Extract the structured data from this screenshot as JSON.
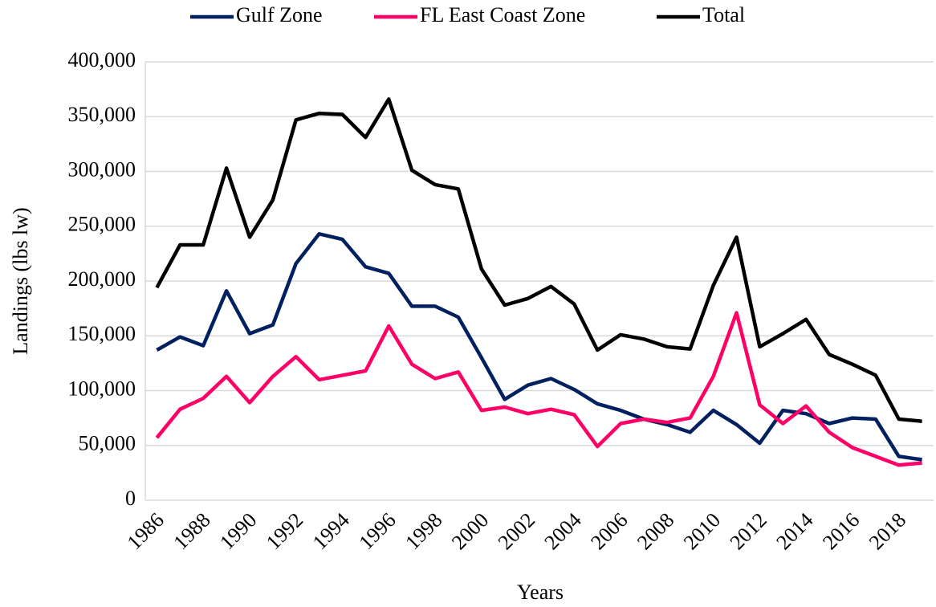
{
  "chart_data": {
    "type": "line",
    "xlabel": "Years",
    "ylabel": "Landings (lbs lw)",
    "categories": [
      "1986",
      null,
      "1988",
      null,
      "1990",
      null,
      "1992",
      null,
      "1994",
      null,
      "1996",
      null,
      "1998",
      null,
      "2000",
      null,
      "2002",
      null,
      "2004",
      null,
      "2006",
      null,
      "2008",
      null,
      "2010",
      null,
      "2012",
      null,
      "2014",
      null,
      "2016",
      null,
      "2018",
      null
    ],
    "series": [
      {
        "name": "Gulf Zone",
        "color": "#002060",
        "values": [
          137000,
          149000,
          141000,
          191000,
          152000,
          160000,
          216000,
          243000,
          238000,
          213000,
          207000,
          177000,
          177000,
          167000,
          130000,
          92000,
          105000,
          111000,
          101000,
          88000,
          82000,
          74000,
          69000,
          62000,
          82000,
          69000,
          52000,
          82000,
          79000,
          70000,
          75000,
          74000,
          40000,
          37000
        ]
      },
      {
        "name": "FL East Coast Zone",
        "color": "#ff0066",
        "values": [
          57000,
          83000,
          93000,
          113000,
          89000,
          113000,
          131000,
          110000,
          114000,
          118000,
          159000,
          124000,
          111000,
          117000,
          82000,
          85000,
          79000,
          83000,
          78000,
          49000,
          70000,
          74000,
          71000,
          75000,
          113000,
          171000,
          87000,
          70000,
          86000,
          62000,
          48000,
          40000,
          32000,
          34000
        ]
      },
      {
        "name": "Total",
        "color": "#000000",
        "values": [
          194000,
          233000,
          233000,
          303000,
          240000,
          274000,
          347000,
          353000,
          352000,
          331000,
          366000,
          301000,
          288000,
          284000,
          211000,
          178000,
          184000,
          195000,
          179000,
          137000,
          151000,
          147000,
          140000,
          138000,
          196000,
          240000,
          140000,
          152000,
          165000,
          133000,
          124000,
          114000,
          74000,
          72000
        ]
      }
    ],
    "ylim": [
      0,
      400000
    ],
    "yticks": [
      0,
      {
        "value": 50000,
        "label": "50,000"
      },
      {
        "value": 100000,
        "label": "100,000"
      },
      {
        "value": 150000,
        "label": "150,000"
      },
      {
        "value": 200000,
        "label": "200,000"
      },
      {
        "value": 250000,
        "label": "250,000"
      },
      {
        "value": 300000,
        "label": "300,000"
      },
      {
        "value": 350000,
        "label": "350,000"
      },
      {
        "value": 400000,
        "label": "400,000"
      }
    ],
    "grid": true,
    "legend": "top"
  }
}
